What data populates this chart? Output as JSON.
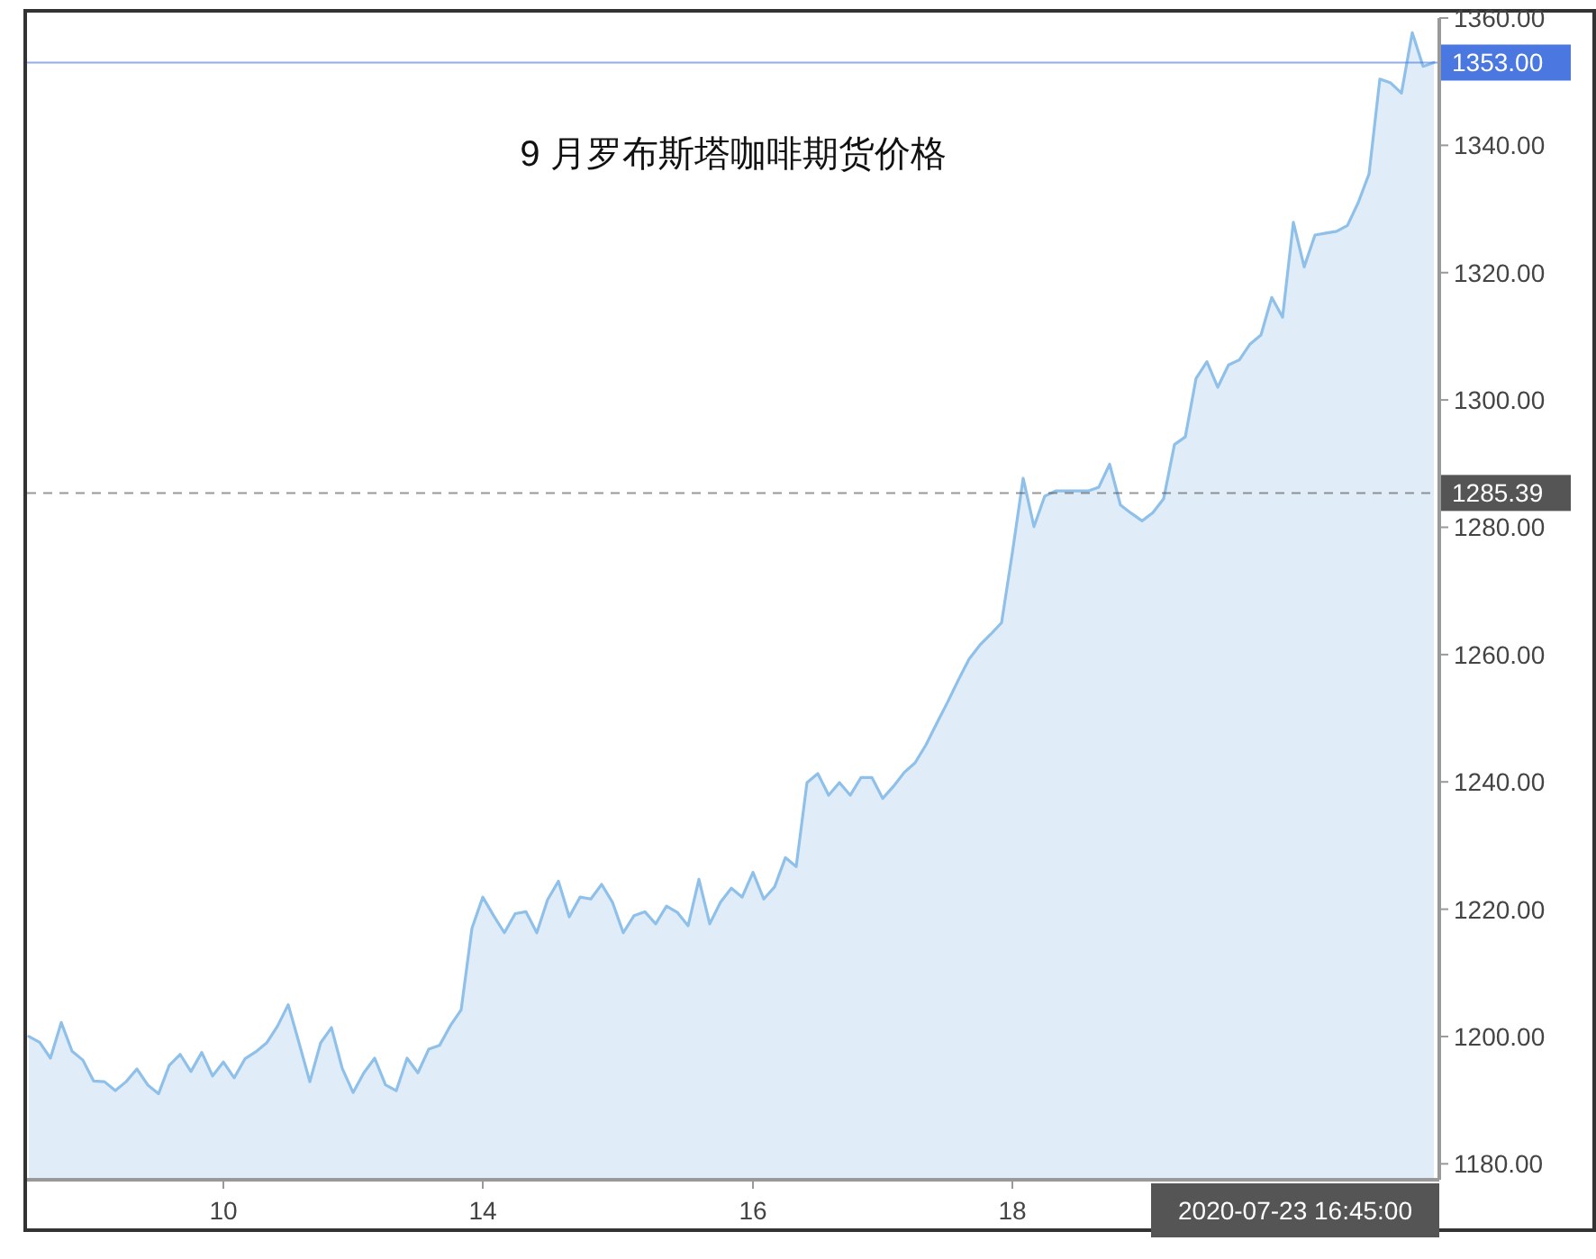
{
  "chart_data": {
    "type": "area",
    "title": "9 月罗布斯塔咖啡期货价格",
    "categories": [
      null,
      null,
      null,
      null,
      null,
      null,
      null,
      null,
      null,
      null,
      null,
      null,
      null,
      null,
      null,
      null,
      null,
      null,
      "10",
      null,
      null,
      null,
      null,
      null,
      null,
      null,
      null,
      null,
      null,
      null,
      null,
      null,
      null,
      null,
      null,
      null,
      null,
      null,
      null,
      null,
      null,
      null,
      "14",
      null,
      null,
      null,
      null,
      null,
      null,
      null,
      null,
      null,
      null,
      null,
      null,
      null,
      null,
      null,
      null,
      null,
      null,
      null,
      null,
      null,
      null,
      null,
      null,
      "16",
      null,
      null,
      null,
      null,
      null,
      null,
      null,
      null,
      null,
      null,
      null,
      null,
      null,
      null,
      null,
      null,
      null,
      null,
      null,
      null,
      null,
      null,
      null,
      "18",
      null,
      null,
      null,
      null,
      null,
      null,
      null,
      null,
      null,
      null,
      null,
      null,
      null,
      null,
      null,
      null,
      null,
      null,
      null,
      null,
      null,
      null,
      null,
      null,
      null,
      null,
      null,
      null,
      null,
      null,
      null,
      null,
      null,
      null,
      null,
      null,
      null,
      null,
      null
    ],
    "ylim": [
      1177.5,
      1360
    ],
    "yticks": [
      {
        "value": 1180,
        "label": "1180.00"
      },
      {
        "value": 1200,
        "label": "1200.00"
      },
      {
        "value": 1220,
        "label": "1220.00"
      },
      {
        "value": 1240,
        "label": "1240.00"
      },
      {
        "value": 1260,
        "label": "1260.00"
      },
      {
        "value": 1280,
        "label": "1280.00"
      },
      {
        "value": 1300,
        "label": "1300.00"
      },
      {
        "value": 1320,
        "label": "1320.00"
      },
      {
        "value": 1340,
        "label": "1340.00"
      },
      {
        "value": 1360,
        "label": "1360.00"
      }
    ],
    "ref_lines": [
      {
        "axis": "y",
        "value": 1353.0,
        "label": "1353.00",
        "color": "#4a78e0",
        "line_style": "solid"
      },
      {
        "axis": "y",
        "value": 1285.39,
        "label": "1285.39",
        "color": "#555555",
        "line_style": "dashed"
      }
    ],
    "annotations": [
      "2020-07-23 16:45:00"
    ],
    "series": [
      {
        "color": "#8ec0ea",
        "values": [
          1200.0,
          1199.1,
          1196.6,
          1202.2,
          1197.7,
          1196.3,
          1193.0,
          1192.9,
          1191.5,
          1192.9,
          1194.9,
          1192.4,
          1191.0,
          1195.5,
          1197.2,
          1194.5,
          1197.5,
          1193.8,
          1196.0,
          1193.5,
          1196.5,
          1197.6,
          1199.0,
          1201.6,
          1205.0,
          1199.0,
          1192.9,
          1199.0,
          1201.4,
          1195.0,
          1191.2,
          1194.3,
          1196.6,
          1192.4,
          1191.5,
          1196.6,
          1194.3,
          1198.0,
          1198.6,
          1201.7,
          1204.2,
          1217.0,
          1221.9,
          1219.0,
          1216.3,
          1219.3,
          1219.6,
          1216.3,
          1221.5,
          1224.4,
          1218.8,
          1221.9,
          1221.6,
          1223.9,
          1221.1,
          1216.3,
          1219.0,
          1219.6,
          1217.7,
          1220.5,
          1219.5,
          1217.4,
          1224.7,
          1217.7,
          1221.1,
          1223.3,
          1221.9,
          1225.8,
          1221.6,
          1223.5,
          1228.1,
          1226.7,
          1239.9,
          1241.3,
          1237.9,
          1239.9,
          1237.9,
          1240.7,
          1240.7,
          1237.4,
          1239.3,
          1241.5,
          1243.0,
          1245.8,
          1249.2,
          1252.5,
          1256.0,
          1259.3,
          1261.5,
          1263.2,
          1265.0,
          1276.0,
          1287.7,
          1280.1,
          1284.9,
          1285.7,
          1285.7,
          1285.7,
          1285.7,
          1286.3,
          1289.9,
          1283.5,
          1282.2,
          1281.0,
          1282.3,
          1284.5,
          1293.0,
          1294.2,
          1303.4,
          1306.0,
          1302.0,
          1305.5,
          1306.3,
          1308.8,
          1310.2,
          1316.1,
          1313.0,
          1327.9,
          1320.9,
          1325.9,
          1326.2,
          1326.5,
          1327.4,
          1331.0,
          1335.5,
          1350.4,
          1349.8,
          1348.2,
          1357.7,
          1352.4,
          1353.0
        ]
      }
    ]
  }
}
